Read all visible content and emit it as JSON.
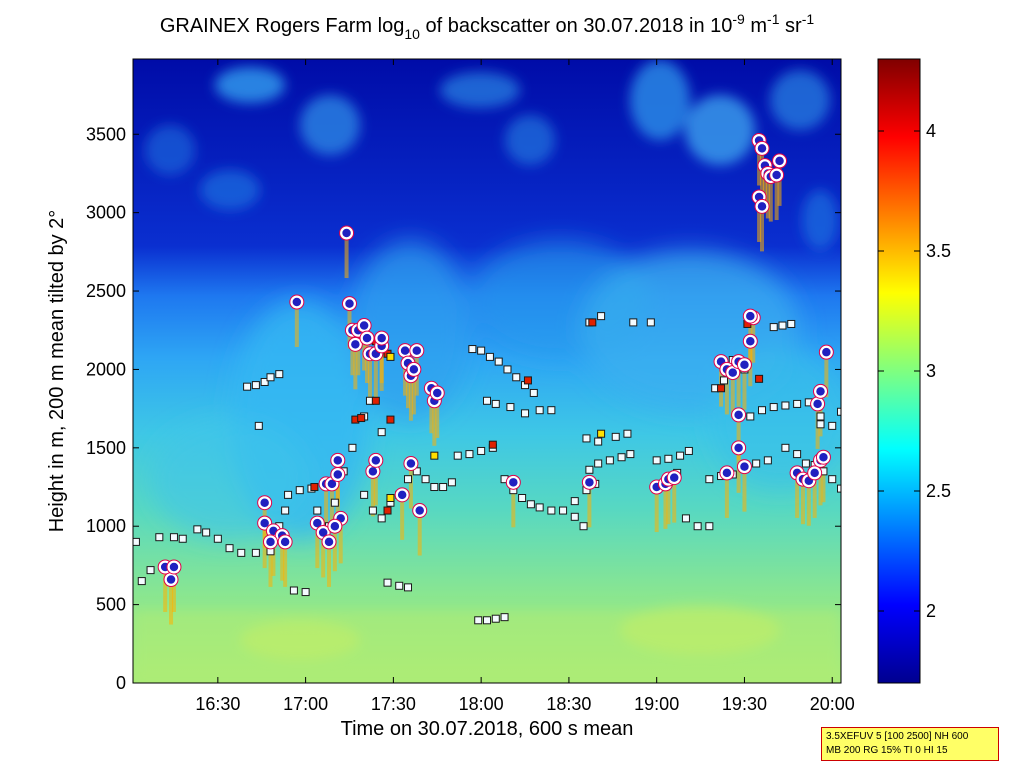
{
  "chart_data": {
    "type": "heatmap",
    "title": {
      "prefix": "GRAINEX Rogers Farm log",
      "sub": "10",
      "middle": " of backscatter on 30.07.2018 in 10",
      "sup1": "-9",
      "unit_m": " m",
      "sup2": "-1",
      "unit_sr": " sr",
      "sup3": "-1"
    },
    "xlabel": "Time on 30.07.2018, 600 s mean",
    "ylabel": "Height in m, 200 m mean tilted by 2°",
    "x_ticks": [
      "16:30",
      "17:00",
      "17:30",
      "18:00",
      "18:30",
      "19:00",
      "19:30",
      "20:00"
    ],
    "x_tick_minutes": [
      990,
      1020,
      1050,
      1080,
      1110,
      1140,
      1170,
      1200
    ],
    "xlim_minutes": [
      961,
      1203
    ],
    "y_ticks": [
      "0",
      "500",
      "1000",
      "1500",
      "2000",
      "2500",
      "3000",
      "3500"
    ],
    "y_tick_values": [
      0,
      500,
      1000,
      1500,
      2000,
      2500,
      3000,
      3500
    ],
    "ylim": [
      0,
      3980
    ],
    "colorbar": {
      "ticks": [
        "2",
        "2.5",
        "3",
        "3.5",
        "4"
      ],
      "tick_values": [
        2,
        2.5,
        3,
        3.5,
        4
      ],
      "range": [
        1.7,
        4.3
      ],
      "colormap": "jet"
    },
    "layer_points": [
      [
        962,
        900
      ],
      [
        964,
        650
      ],
      [
        967,
        720
      ],
      [
        970,
        930
      ],
      [
        975,
        930
      ],
      [
        978,
        920
      ],
      [
        983,
        980
      ],
      [
        986,
        960
      ],
      [
        990,
        920
      ],
      [
        994,
        860
      ],
      [
        998,
        830
      ],
      [
        1003,
        830
      ],
      [
        1008,
        840
      ],
      [
        1011,
        1000
      ],
      [
        1013,
        1100
      ],
      [
        1000,
        1890
      ],
      [
        1003,
        1900
      ],
      [
        1006,
        1920
      ],
      [
        1008,
        1950
      ],
      [
        1011,
        1970
      ],
      [
        1004,
        1640
      ],
      [
        1014,
        1200
      ],
      [
        1018,
        1230
      ],
      [
        1022,
        1240
      ],
      [
        1016,
        590
      ],
      [
        1020,
        580
      ],
      [
        1024,
        1100
      ],
      [
        1028,
        1000
      ],
      [
        1030,
        1150
      ],
      [
        1033,
        1350
      ],
      [
        1036,
        1500
      ],
      [
        1040,
        1200
      ],
      [
        1043,
        1100
      ],
      [
        1046,
        1050
      ],
      [
        1049,
        1150
      ],
      [
        1052,
        1200
      ],
      [
        1055,
        1300
      ],
      [
        1058,
        1350
      ],
      [
        1061,
        1300
      ],
      [
        1064,
        1250
      ],
      [
        1067,
        1250
      ],
      [
        1070,
        1280
      ],
      [
        1048,
        640
      ],
      [
        1052,
        620
      ],
      [
        1055,
        610
      ],
      [
        1040,
        1700
      ],
      [
        1042,
        1800
      ],
      [
        1046,
        1600
      ],
      [
        1072,
        1450
      ],
      [
        1076,
        1460
      ],
      [
        1080,
        1480
      ],
      [
        1084,
        1500
      ],
      [
        1077,
        2130
      ],
      [
        1080,
        2120
      ],
      [
        1083,
        2080
      ],
      [
        1086,
        2050
      ],
      [
        1089,
        2000
      ],
      [
        1092,
        1950
      ],
      [
        1095,
        1900
      ],
      [
        1098,
        1850
      ],
      [
        1082,
        1800
      ],
      [
        1085,
        1780
      ],
      [
        1090,
        1760
      ],
      [
        1095,
        1720
      ],
      [
        1100,
        1740
      ],
      [
        1104,
        1740
      ],
      [
        1079,
        400
      ],
      [
        1082,
        400
      ],
      [
        1085,
        410
      ],
      [
        1088,
        420
      ],
      [
        1088,
        1300
      ],
      [
        1091,
        1230
      ],
      [
        1094,
        1180
      ],
      [
        1097,
        1140
      ],
      [
        1100,
        1120
      ],
      [
        1104,
        1100
      ],
      [
        1108,
        1100
      ],
      [
        1112,
        1160
      ],
      [
        1116,
        1230
      ],
      [
        1119,
        1270
      ],
      [
        1112,
        1060
      ],
      [
        1115,
        1000
      ],
      [
        1117,
        1360
      ],
      [
        1120,
        1400
      ],
      [
        1124,
        1420
      ],
      [
        1128,
        1440
      ],
      [
        1131,
        1460
      ],
      [
        1140,
        1420
      ],
      [
        1144,
        1430
      ],
      [
        1148,
        1450
      ],
      [
        1151,
        1480
      ],
      [
        1147,
        1340
      ],
      [
        1150,
        1050
      ],
      [
        1154,
        1000
      ],
      [
        1158,
        1000
      ],
      [
        1116,
        1560
      ],
      [
        1120,
        1540
      ],
      [
        1126,
        1570
      ],
      [
        1130,
        1590
      ],
      [
        1132,
        2300
      ],
      [
        1138,
        2300
      ],
      [
        1117,
        2300
      ],
      [
        1121,
        2340
      ],
      [
        1158,
        1300
      ],
      [
        1162,
        1320
      ],
      [
        1166,
        1330
      ],
      [
        1170,
        1370
      ],
      [
        1174,
        1400
      ],
      [
        1178,
        1420
      ],
      [
        1160,
        1880
      ],
      [
        1163,
        1930
      ],
      [
        1166,
        2060
      ],
      [
        1170,
        2000
      ],
      [
        1172,
        1700
      ],
      [
        1176,
        1740
      ],
      [
        1180,
        1760
      ],
      [
        1184,
        1770
      ],
      [
        1188,
        1780
      ],
      [
        1192,
        1790
      ],
      [
        1196,
        1700
      ],
      [
        1180,
        2270
      ],
      [
        1183,
        2280
      ],
      [
        1186,
        2290
      ],
      [
        1184,
        1500
      ],
      [
        1188,
        1460
      ],
      [
        1191,
        1400
      ],
      [
        1194,
        1390
      ],
      [
        1197,
        1350
      ],
      [
        1200,
        1300
      ],
      [
        1203,
        1240
      ],
      [
        1196,
        1650
      ],
      [
        1200,
        1640
      ],
      [
        1203,
        1730
      ]
    ],
    "red_points": [
      [
        1023,
        1250
      ],
      [
        1037,
        1680
      ],
      [
        1039,
        1690
      ],
      [
        1039,
        2220
      ],
      [
        1044,
        2180
      ],
      [
        1044,
        1800
      ],
      [
        1048,
        2100
      ],
      [
        1049,
        1680
      ],
      [
        1084,
        1520
      ],
      [
        1096,
        1930
      ],
      [
        1118,
        2300
      ],
      [
        1162,
        1880
      ],
      [
        1171,
        2290
      ],
      [
        1163,
        2030
      ],
      [
        1175,
        1940
      ],
      [
        1048,
        1100
      ]
    ],
    "yellow_points": [
      [
        1049,
        2080
      ],
      [
        1121,
        1590
      ],
      [
        1049,
        1180
      ],
      [
        1064,
        1450
      ]
    ],
    "cloud_points": [
      [
        974,
        660
      ],
      [
        972,
        740
      ],
      [
        975,
        740
      ],
      [
        1006,
        1150
      ],
      [
        1006,
        1020
      ],
      [
        1009,
        970
      ],
      [
        1012,
        940
      ],
      [
        1013,
        900
      ],
      [
        1008,
        900
      ],
      [
        1017,
        2430
      ],
      [
        1024,
        1020
      ],
      [
        1026,
        960
      ],
      [
        1028,
        900
      ],
      [
        1027,
        1270
      ],
      [
        1029,
        1270
      ],
      [
        1031,
        1330
      ],
      [
        1031,
        1420
      ],
      [
        1032,
        1050
      ],
      [
        1030,
        1000
      ],
      [
        1034,
        2870
      ],
      [
        1035,
        2420
      ],
      [
        1036,
        2250
      ],
      [
        1037,
        2160
      ],
      [
        1038,
        2250
      ],
      [
        1040,
        2280
      ],
      [
        1041,
        2200
      ],
      [
        1042,
        2100
      ],
      [
        1044,
        2100
      ],
      [
        1046,
        2150
      ],
      [
        1046,
        2200
      ],
      [
        1043,
        1350
      ],
      [
        1044,
        1420
      ],
      [
        1054,
        2120
      ],
      [
        1055,
        2040
      ],
      [
        1056,
        1960
      ],
      [
        1057,
        2000
      ],
      [
        1058,
        2120
      ],
      [
        1053,
        1200
      ],
      [
        1056,
        1400
      ],
      [
        1059,
        1100
      ],
      [
        1063,
        1880
      ],
      [
        1064,
        1800
      ],
      [
        1065,
        1850
      ],
      [
        1091,
        1280
      ],
      [
        1117,
        1280
      ],
      [
        1140,
        1250
      ],
      [
        1143,
        1270
      ],
      [
        1144,
        1300
      ],
      [
        1146,
        1310
      ],
      [
        1162,
        2050
      ],
      [
        1164,
        2000
      ],
      [
        1166,
        1980
      ],
      [
        1168,
        2050
      ],
      [
        1170,
        2030
      ],
      [
        1172,
        2180
      ],
      [
        1173,
        2330
      ],
      [
        1172,
        2340
      ],
      [
        1164,
        1340
      ],
      [
        1168,
        1500
      ],
      [
        1170,
        1380
      ],
      [
        1168,
        1710
      ],
      [
        1175,
        3460
      ],
      [
        1176,
        3410
      ],
      [
        1177,
        3300
      ],
      [
        1178,
        3250
      ],
      [
        1179,
        3230
      ],
      [
        1181,
        3240
      ],
      [
        1182,
        3330
      ],
      [
        1175,
        3100
      ],
      [
        1176,
        3040
      ],
      [
        1188,
        1340
      ],
      [
        1190,
        1300
      ],
      [
        1192,
        1290
      ],
      [
        1194,
        1340
      ],
      [
        1196,
        1420
      ],
      [
        1197,
        1440
      ],
      [
        1195,
        1780
      ],
      [
        1196,
        1860
      ],
      [
        1198,
        2110
      ]
    ]
  }
}
